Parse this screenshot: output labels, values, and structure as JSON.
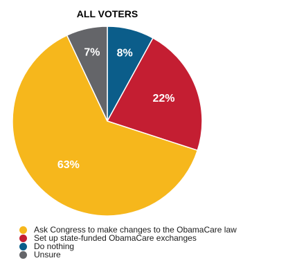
{
  "chart_data": {
    "type": "pie",
    "title": "ALL VOTERS",
    "slices": [
      {
        "label": "Do nothing",
        "value": 8,
        "value_label": "8%",
        "color": "#0b5d8a"
      },
      {
        "label": "Set up state-funded ObamaCare exchanges",
        "value": 22,
        "value_label": "22%",
        "color": "#c41e32"
      },
      {
        "label": "Ask Congress to make changes to the ObamaCare law",
        "value": 63,
        "value_label": "63%",
        "color": "#f6b71c"
      },
      {
        "label": "Unsure",
        "value": 7,
        "value_label": "7%",
        "color": "#646569"
      }
    ],
    "start_angle": "12 o'clock",
    "direction": "clockwise",
    "legend": {
      "position": "bottom-left",
      "order": [
        "Ask Congress to make changes to the ObamaCare law",
        "Set up state-funded ObamaCare exchanges",
        "Do nothing",
        "Unsure"
      ]
    }
  }
}
